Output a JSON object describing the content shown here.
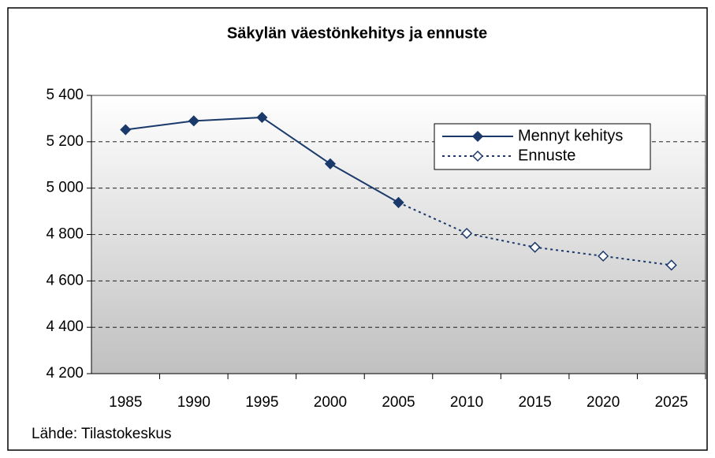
{
  "chart_data": {
    "type": "line",
    "title": "Säkylän väestönkehitys ja ennuste",
    "source": "Lähde: Tilastokeskus",
    "categories": [
      "1985",
      "1990",
      "1995",
      "2000",
      "2005",
      "2010",
      "2015",
      "2020",
      "2025"
    ],
    "series": [
      {
        "name": "Mennyt kehitys",
        "color": "#1b3a6b",
        "line_style": "solid",
        "marker": "filled",
        "values": [
          5252,
          5290,
          5305,
          5105,
          4938,
          null,
          null,
          null,
          null
        ]
      },
      {
        "name": "Ennuste",
        "color": "#1b3a6b",
        "line_style": "dotted",
        "marker": "open",
        "values": [
          null,
          null,
          null,
          null,
          4938,
          4805,
          4745,
          4707,
          4668
        ]
      }
    ],
    "ylim": [
      4200,
      5400
    ],
    "yticks": [
      {
        "value": 4200,
        "label": "4 200"
      },
      {
        "value": 4400,
        "label": "4 400"
      },
      {
        "value": 4600,
        "label": "4 600"
      },
      {
        "value": 4800,
        "label": "4 800"
      },
      {
        "value": 5000,
        "label": "5 000"
      },
      {
        "value": 5200,
        "label": "5 200"
      },
      {
        "value": 5400,
        "label": "5 400"
      }
    ],
    "grid": true,
    "legend": "upper right"
  }
}
